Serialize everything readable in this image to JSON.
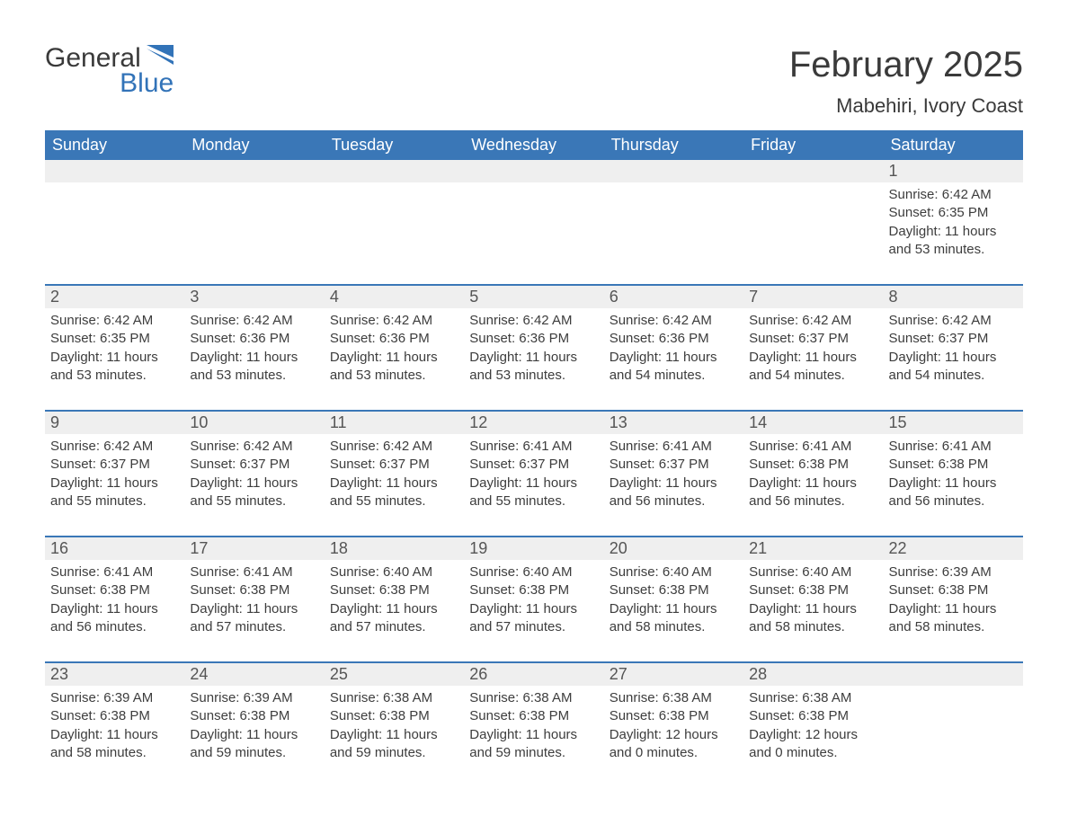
{
  "logo": {
    "word1": "General",
    "word2": "Blue",
    "brand_color": "#3273b8"
  },
  "title": "February 2025",
  "location": "Mabehiri, Ivory Coast",
  "colors": {
    "header_bg": "#3a77b7",
    "header_text": "#ffffff",
    "daynum_bg": "#efefef",
    "border": "#3a77b7",
    "body_text": "#3d3d3d",
    "page_bg": "#ffffff"
  },
  "fonts": {
    "title_pt": 40,
    "location_pt": 22,
    "dow_pt": 18,
    "daynum_pt": 18,
    "detail_pt": 15
  },
  "days_of_week": [
    "Sunday",
    "Monday",
    "Tuesday",
    "Wednesday",
    "Thursday",
    "Friday",
    "Saturday"
  ],
  "labels": {
    "sunrise": "Sunrise",
    "sunset": "Sunset",
    "daylight": "Daylight"
  },
  "weeks": [
    [
      null,
      null,
      null,
      null,
      null,
      null,
      {
        "n": "1",
        "sunrise": "6:42 AM",
        "sunset": "6:35 PM",
        "daylight": "11 hours and 53 minutes."
      }
    ],
    [
      {
        "n": "2",
        "sunrise": "6:42 AM",
        "sunset": "6:35 PM",
        "daylight": "11 hours and 53 minutes."
      },
      {
        "n": "3",
        "sunrise": "6:42 AM",
        "sunset": "6:36 PM",
        "daylight": "11 hours and 53 minutes."
      },
      {
        "n": "4",
        "sunrise": "6:42 AM",
        "sunset": "6:36 PM",
        "daylight": "11 hours and 53 minutes."
      },
      {
        "n": "5",
        "sunrise": "6:42 AM",
        "sunset": "6:36 PM",
        "daylight": "11 hours and 53 minutes."
      },
      {
        "n": "6",
        "sunrise": "6:42 AM",
        "sunset": "6:36 PM",
        "daylight": "11 hours and 54 minutes."
      },
      {
        "n": "7",
        "sunrise": "6:42 AM",
        "sunset": "6:37 PM",
        "daylight": "11 hours and 54 minutes."
      },
      {
        "n": "8",
        "sunrise": "6:42 AM",
        "sunset": "6:37 PM",
        "daylight": "11 hours and 54 minutes."
      }
    ],
    [
      {
        "n": "9",
        "sunrise": "6:42 AM",
        "sunset": "6:37 PM",
        "daylight": "11 hours and 55 minutes."
      },
      {
        "n": "10",
        "sunrise": "6:42 AM",
        "sunset": "6:37 PM",
        "daylight": "11 hours and 55 minutes."
      },
      {
        "n": "11",
        "sunrise": "6:42 AM",
        "sunset": "6:37 PM",
        "daylight": "11 hours and 55 minutes."
      },
      {
        "n": "12",
        "sunrise": "6:41 AM",
        "sunset": "6:37 PM",
        "daylight": "11 hours and 55 minutes."
      },
      {
        "n": "13",
        "sunrise": "6:41 AM",
        "sunset": "6:37 PM",
        "daylight": "11 hours and 56 minutes."
      },
      {
        "n": "14",
        "sunrise": "6:41 AM",
        "sunset": "6:38 PM",
        "daylight": "11 hours and 56 minutes."
      },
      {
        "n": "15",
        "sunrise": "6:41 AM",
        "sunset": "6:38 PM",
        "daylight": "11 hours and 56 minutes."
      }
    ],
    [
      {
        "n": "16",
        "sunrise": "6:41 AM",
        "sunset": "6:38 PM",
        "daylight": "11 hours and 56 minutes."
      },
      {
        "n": "17",
        "sunrise": "6:41 AM",
        "sunset": "6:38 PM",
        "daylight": "11 hours and 57 minutes."
      },
      {
        "n": "18",
        "sunrise": "6:40 AM",
        "sunset": "6:38 PM",
        "daylight": "11 hours and 57 minutes."
      },
      {
        "n": "19",
        "sunrise": "6:40 AM",
        "sunset": "6:38 PM",
        "daylight": "11 hours and 57 minutes."
      },
      {
        "n": "20",
        "sunrise": "6:40 AM",
        "sunset": "6:38 PM",
        "daylight": "11 hours and 58 minutes."
      },
      {
        "n": "21",
        "sunrise": "6:40 AM",
        "sunset": "6:38 PM",
        "daylight": "11 hours and 58 minutes."
      },
      {
        "n": "22",
        "sunrise": "6:39 AM",
        "sunset": "6:38 PM",
        "daylight": "11 hours and 58 minutes."
      }
    ],
    [
      {
        "n": "23",
        "sunrise": "6:39 AM",
        "sunset": "6:38 PM",
        "daylight": "11 hours and 58 minutes."
      },
      {
        "n": "24",
        "sunrise": "6:39 AM",
        "sunset": "6:38 PM",
        "daylight": "11 hours and 59 minutes."
      },
      {
        "n": "25",
        "sunrise": "6:38 AM",
        "sunset": "6:38 PM",
        "daylight": "11 hours and 59 minutes."
      },
      {
        "n": "26",
        "sunrise": "6:38 AM",
        "sunset": "6:38 PM",
        "daylight": "11 hours and 59 minutes."
      },
      {
        "n": "27",
        "sunrise": "6:38 AM",
        "sunset": "6:38 PM",
        "daylight": "12 hours and 0 minutes."
      },
      {
        "n": "28",
        "sunrise": "6:38 AM",
        "sunset": "6:38 PM",
        "daylight": "12 hours and 0 minutes."
      },
      null
    ]
  ]
}
